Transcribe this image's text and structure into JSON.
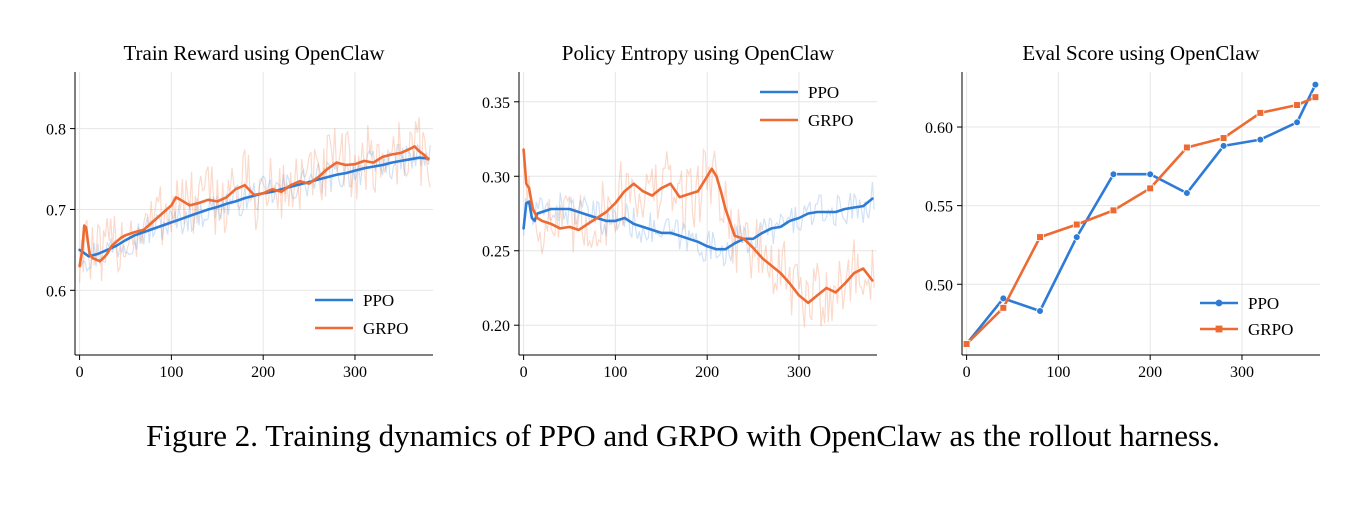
{
  "figure": {
    "caption": "Figure 2. Training dynamics of PPO and GRPO with OpenClaw as the rollout harness."
  },
  "colors": {
    "PPO": "#2e7bd6",
    "GRPO": "#ee6a33"
  },
  "chart_data": [
    {
      "type": "line",
      "title": "Train Reward using OpenClaw",
      "xlabel": "",
      "ylabel": "",
      "xlim": [
        -5,
        385
      ],
      "ylim": [
        0.52,
        0.87
      ],
      "xticks": [
        0,
        100,
        200,
        300
      ],
      "yticks": [
        0.6,
        0.7,
        0.8
      ],
      "ytick_labels": [
        "0.6",
        "0.7",
        "0.8"
      ],
      "grid": true,
      "legend": "lower-right",
      "marker": null,
      "raw_overlay": true,
      "series": [
        {
          "name": "PPO",
          "x": [
            0,
            5,
            10,
            20,
            30,
            40,
            50,
            60,
            70,
            80,
            90,
            100,
            110,
            120,
            130,
            140,
            150,
            160,
            170,
            180,
            190,
            200,
            210,
            220,
            230,
            240,
            250,
            260,
            270,
            280,
            290,
            300,
            310,
            320,
            330,
            340,
            350,
            360,
            370,
            380
          ],
          "y": [
            0.65,
            0.646,
            0.642,
            0.645,
            0.65,
            0.655,
            0.662,
            0.668,
            0.672,
            0.676,
            0.68,
            0.684,
            0.688,
            0.692,
            0.696,
            0.7,
            0.703,
            0.707,
            0.71,
            0.714,
            0.717,
            0.72,
            0.722,
            0.725,
            0.728,
            0.731,
            0.734,
            0.737,
            0.74,
            0.743,
            0.745,
            0.748,
            0.751,
            0.753,
            0.755,
            0.758,
            0.76,
            0.762,
            0.764,
            0.763
          ]
        },
        {
          "name": "GRPO",
          "x": [
            0,
            3,
            5,
            7,
            9,
            11,
            14,
            18,
            22,
            26,
            30,
            35,
            40,
            45,
            50,
            60,
            70,
            80,
            90,
            100,
            105,
            110,
            120,
            130,
            140,
            150,
            160,
            170,
            180,
            190,
            200,
            210,
            220,
            230,
            240,
            250,
            260,
            270,
            280,
            290,
            300,
            310,
            320,
            330,
            340,
            350,
            360,
            365,
            370,
            375,
            380
          ],
          "y": [
            0.63,
            0.65,
            0.68,
            0.678,
            0.66,
            0.645,
            0.64,
            0.638,
            0.636,
            0.64,
            0.645,
            0.655,
            0.66,
            0.665,
            0.668,
            0.672,
            0.675,
            0.685,
            0.695,
            0.705,
            0.715,
            0.712,
            0.705,
            0.708,
            0.712,
            0.71,
            0.715,
            0.725,
            0.73,
            0.718,
            0.72,
            0.725,
            0.722,
            0.73,
            0.735,
            0.732,
            0.74,
            0.75,
            0.758,
            0.755,
            0.756,
            0.76,
            0.758,
            0.765,
            0.768,
            0.77,
            0.775,
            0.778,
            0.772,
            0.768,
            0.762
          ]
        }
      ]
    },
    {
      "type": "line",
      "title": "Policy Entropy using OpenClaw",
      "xlabel": "",
      "ylabel": "",
      "xlim": [
        -5,
        385
      ],
      "ylim": [
        0.18,
        0.37
      ],
      "xticks": [
        0,
        100,
        200,
        300
      ],
      "yticks": [
        0.2,
        0.25,
        0.3,
        0.35
      ],
      "ytick_labels": [
        "0.20",
        "0.25",
        "0.30",
        "0.35"
      ],
      "grid": true,
      "legend": "top-right",
      "marker": null,
      "raw_overlay": true,
      "series": [
        {
          "name": "PPO",
          "x": [
            0,
            3,
            6,
            9,
            12,
            15,
            20,
            30,
            40,
            50,
            60,
            70,
            80,
            90,
            100,
            110,
            120,
            130,
            140,
            150,
            160,
            170,
            180,
            190,
            200,
            210,
            220,
            230,
            240,
            250,
            260,
            270,
            280,
            290,
            300,
            310,
            320,
            330,
            340,
            350,
            360,
            370,
            380
          ],
          "y": [
            0.265,
            0.282,
            0.283,
            0.272,
            0.27,
            0.275,
            0.276,
            0.278,
            0.278,
            0.278,
            0.276,
            0.274,
            0.272,
            0.27,
            0.27,
            0.272,
            0.268,
            0.266,
            0.264,
            0.262,
            0.262,
            0.26,
            0.258,
            0.256,
            0.253,
            0.251,
            0.251,
            0.255,
            0.258,
            0.258,
            0.262,
            0.265,
            0.266,
            0.27,
            0.272,
            0.275,
            0.276,
            0.276,
            0.276,
            0.278,
            0.279,
            0.28,
            0.285
          ]
        },
        {
          "name": "GRPO",
          "x": [
            0,
            3,
            6,
            10,
            15,
            20,
            30,
            40,
            50,
            60,
            70,
            80,
            90,
            100,
            110,
            120,
            130,
            140,
            150,
            160,
            170,
            180,
            190,
            200,
            205,
            210,
            215,
            220,
            230,
            240,
            250,
            260,
            270,
            280,
            290,
            300,
            310,
            320,
            330,
            340,
            350,
            360,
            370,
            380
          ],
          "y": [
            0.318,
            0.295,
            0.292,
            0.278,
            0.272,
            0.27,
            0.268,
            0.265,
            0.266,
            0.264,
            0.268,
            0.272,
            0.276,
            0.282,
            0.29,
            0.295,
            0.29,
            0.287,
            0.292,
            0.295,
            0.286,
            0.288,
            0.29,
            0.3,
            0.305,
            0.3,
            0.29,
            0.278,
            0.26,
            0.258,
            0.252,
            0.245,
            0.24,
            0.235,
            0.228,
            0.22,
            0.215,
            0.22,
            0.225,
            0.222,
            0.228,
            0.235,
            0.238,
            0.23
          ]
        }
      ]
    },
    {
      "type": "line",
      "title": "Eval Score using OpenClaw",
      "xlabel": "",
      "ylabel": "",
      "xlim": [
        -5,
        385
      ],
      "ylim": [
        0.455,
        0.635
      ],
      "xticks": [
        0,
        100,
        200,
        300
      ],
      "yticks": [
        0.5,
        0.55,
        0.6
      ],
      "ytick_labels": [
        "0.50",
        "0.55",
        "0.60"
      ],
      "grid": true,
      "legend": "lower-right",
      "raw_overlay": false,
      "series": [
        {
          "name": "PPO",
          "marker": "circle",
          "x": [
            0,
            40,
            80,
            120,
            160,
            200,
            240,
            280,
            320,
            360,
            380
          ],
          "y": [
            0.462,
            0.491,
            0.483,
            0.53,
            0.57,
            0.57,
            0.558,
            0.588,
            0.592,
            0.603,
            0.627
          ]
        },
        {
          "name": "GRPO",
          "marker": "square",
          "x": [
            0,
            40,
            80,
            120,
            160,
            200,
            240,
            280,
            320,
            360,
            380
          ],
          "y": [
            0.462,
            0.485,
            0.53,
            0.538,
            0.547,
            0.561,
            0.587,
            0.593,
            0.609,
            0.614,
            0.619
          ]
        }
      ]
    }
  ]
}
